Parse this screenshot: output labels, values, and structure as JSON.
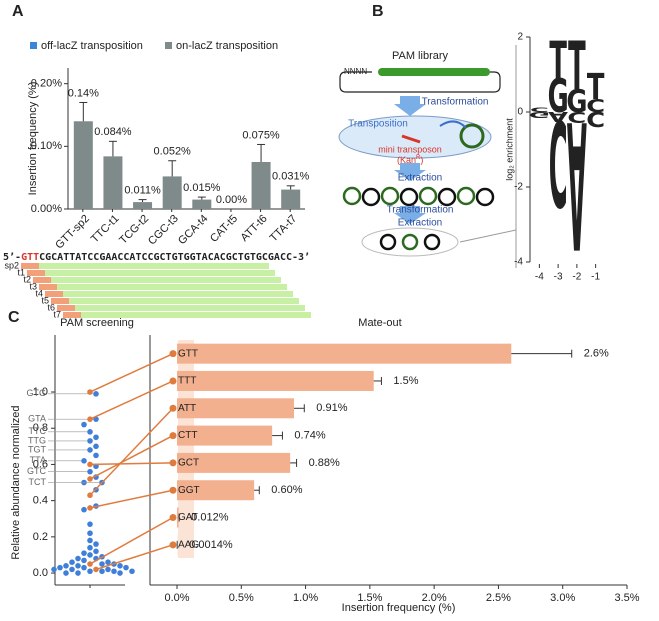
{
  "panel_labels": [
    "A",
    "B",
    "C"
  ],
  "sequence": {
    "prime5": "5’-",
    "pam": "GTT",
    "rest": "CGCATTATCCGAACCATCCGCTGTGGTACACGCTGTGCGACC",
    "prime3": "-3’",
    "tracks": [
      "sp2",
      "t1",
      "t2",
      "t3",
      "t4",
      "t5",
      "t6",
      "t7"
    ]
  },
  "diagram": {
    "library": "PAM library",
    "nnnn": "NNNN",
    "step1": "Transformation",
    "transposition": "Transposition",
    "transposon": "mini transposon",
    "kan_open": "(Kan",
    "kan_sup": "R",
    "kan_close": ")",
    "step2": "Extraction",
    "step3": "Transformation",
    "step4": "Extraction"
  },
  "chart_data": [
    {
      "type": "bar",
      "orientation": "vertical",
      "y_label": "Insertion frequency (%)",
      "legend": "top",
      "categories": [
        "GTT-sp2",
        "TTC-t1",
        "TCG-t2",
        "CGC-t3",
        "GCA-t4",
        "CAT-t5",
        "ATT-t6",
        "TTA-t7"
      ],
      "series": [
        {
          "name": "off-lacZ transposition",
          "color": "#3b86d8",
          "values": [
            0,
            0,
            0,
            0,
            0,
            0,
            0,
            0
          ]
        },
        {
          "name": "on-lacZ transposition",
          "color": "#7f8a8b",
          "values": [
            0.14,
            0.084,
            0.011,
            0.052,
            0.015,
            0.0,
            0.075,
            0.031
          ],
          "value_labels": [
            "0.14%",
            "0.084%",
            "0.011%",
            "0.052%",
            "0.015%",
            "0.00%",
            "0.075%",
            "0.031%"
          ],
          "errors": [
            0.03,
            0.024,
            0.004,
            0.025,
            0.004,
            0,
            0.028,
            0.006
          ]
        }
      ],
      "ylim": [
        0,
        0.225
      ],
      "yticks": [
        {
          "value": 0,
          "label": "0.00%"
        },
        {
          "value": 0.1,
          "label": "0.10%"
        },
        {
          "value": 0.2,
          "label": "0.20%"
        }
      ]
    },
    {
      "type": "logo",
      "y_label": "log₂ enrichment",
      "xlim": [
        -4.5,
        -0.5
      ],
      "xticks": [
        -4,
        -3,
        -2,
        -1
      ],
      "ylim": [
        -4,
        2
      ],
      "yticks": [
        2,
        0,
        -2,
        -4
      ],
      "letter_colors": {
        "A": "#3a9b2c",
        "C": "#2448d8",
        "G": "#f0a22a",
        "T": "#e5352a"
      },
      "stacks": [
        {
          "above": [
            {
              "letter": "C",
              "height": 0.12
            }
          ],
          "below": [
            {
              "letter": "G",
              "height": 0.15
            }
          ]
        },
        {
          "above": [
            {
              "letter": "G",
              "height": 0.9
            },
            {
              "letter": "T",
              "height": 1.0
            }
          ],
          "below": [
            {
              "letter": "A",
              "height": 0.25
            },
            {
              "letter": "C",
              "height": 2.3
            }
          ]
        },
        {
          "above": [
            {
              "letter": "G",
              "height": 0.6
            },
            {
              "letter": "T",
              "height": 1.3
            }
          ],
          "below": [
            {
              "letter": "C",
              "height": 0.3
            },
            {
              "letter": "A",
              "height": 3.4
            }
          ]
        },
        {
          "above": [
            {
              "letter": "C",
              "height": 0.35
            },
            {
              "letter": "T",
              "height": 0.7
            }
          ],
          "below": [
            {
              "letter": "C",
              "height": 0.4
            }
          ]
        }
      ]
    },
    {
      "type": "swarm",
      "title": "PAM screening",
      "y_label": "Relative abundance normalized",
      "color": "#3f7fd9",
      "values": [
        0.99,
        0.85,
        0.82,
        0.78,
        0.75,
        0.73,
        0.7,
        0.68,
        0.65,
        0.62,
        0.59,
        0.56,
        0.53,
        0.5,
        0.5,
        0.46,
        0.37,
        0.35,
        0.27,
        0.22,
        0.18,
        0.16,
        0.14,
        0.12,
        0.11,
        0.1,
        0.09,
        0.08,
        0.08,
        0.07,
        0.06,
        0.06,
        0.05,
        0.05,
        0.04,
        0.04,
        0.04,
        0.03,
        0.03,
        0.03,
        0.02,
        0.02,
        0.02,
        0.01,
        0.01,
        0.01,
        0.01,
        0.0,
        0.0,
        0.0
      ],
      "point_labels": [
        "GTG",
        "GTA",
        null,
        "TTC",
        null,
        "TTG",
        null,
        "TGT",
        null,
        "TTA",
        null,
        "GTC",
        null,
        null,
        "TCT",
        null,
        null,
        null,
        null,
        null,
        null,
        null,
        null,
        null,
        null,
        null,
        null,
        null,
        null,
        null,
        null,
        null,
        null,
        null,
        null,
        null,
        null,
        null,
        null,
        null,
        null,
        null,
        null,
        null,
        null,
        null,
        null,
        null,
        null,
        null
      ],
      "highlight": {
        "color": "#e07b3e",
        "values": [
          1.0,
          0.85,
          0.43,
          0.52,
          0.6,
          0.36,
          0.05,
          0.02
        ]
      },
      "ylim": [
        -0.066,
        1.315
      ],
      "yticks": [
        {
          "value": 0,
          "label": "0.0"
        },
        {
          "value": 0.2,
          "label": "0.2"
        },
        {
          "value": 0.4,
          "label": "0.4"
        },
        {
          "value": 0.6,
          "label": "0.6"
        },
        {
          "value": 0.8,
          "label": "0.8"
        },
        {
          "value": 1,
          "label": "1.0"
        }
      ]
    },
    {
      "type": "bar",
      "orientation": "horizontal",
      "title": "Mate-out",
      "x_label": "Insertion frequency (%)",
      "color": "#f2b08f",
      "categories": [
        "GTT",
        "TTT",
        "ATT",
        "CTT",
        "GCT",
        "GGT",
        "GAT",
        "AAG"
      ],
      "values": [
        2.6,
        1.53,
        0.91,
        0.74,
        0.88,
        0.6,
        0.012,
        0.0014
      ],
      "value_labels": [
        "2.6%",
        "1.5%",
        "0.91%",
        "0.74%",
        "0.88%",
        "0.60%",
        "0.012%",
        "0.0014%"
      ],
      "errors": [
        0.47,
        0.06,
        0.08,
        0.08,
        0.05,
        0.04,
        0.005,
        0
      ],
      "xlim": [
        0,
        3.5
      ],
      "xticks": [
        {
          "value": 0,
          "label": "0.0%"
        },
        {
          "value": 0.5,
          "label": "0.5%"
        },
        {
          "value": 1,
          "label": "1.0%"
        },
        {
          "value": 1.5,
          "label": "1.5%"
        },
        {
          "value": 2,
          "label": "2.0%"
        },
        {
          "value": 2.5,
          "label": "2.5%"
        },
        {
          "value": 3,
          "label": "3.0%"
        },
        {
          "value": 3.5,
          "label": "3.5%"
        }
      ]
    }
  ]
}
